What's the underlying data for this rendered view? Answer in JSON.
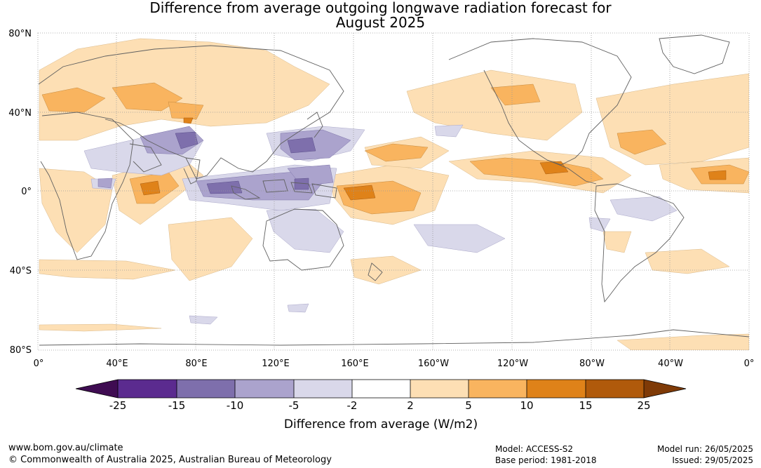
{
  "title_line1": "Difference from average outgoing longwave radiation forecast for",
  "title_line2": "August 2025",
  "lat_labels": [
    "80°N",
    "40°N",
    "0°",
    "40°S",
    "80°S"
  ],
  "lon_labels": [
    "0°",
    "40°E",
    "80°E",
    "120°E",
    "160°E",
    "160°W",
    "120°W",
    "80°W",
    "40°W",
    "0°"
  ],
  "colorbar": {
    "ticks": [
      "-25",
      "-15",
      "-10",
      "-5",
      "-2",
      "2",
      "5",
      "10",
      "15",
      "25"
    ],
    "colors": [
      "#3f0c52",
      "#5b2b8f",
      "#7e6fac",
      "#aba3cd",
      "#d9d8ea",
      "#ffffff",
      "#fddfb4",
      "#f9b45f",
      "#df8219",
      "#b05a0b",
      "#7f3a07"
    ],
    "label": "Difference from average (W/m2)"
  },
  "footer": {
    "website": "www.bom.gov.au/climate",
    "copyright": "© Commonwealth of Australia 2025, Australian Bureau of Meteorology",
    "model": "Model: ACCESS-S2",
    "base_period": "Base period: 1981-2018",
    "model_run": "Model run: 26/05/2025",
    "issued": "Issued: 29/05/2025"
  }
}
